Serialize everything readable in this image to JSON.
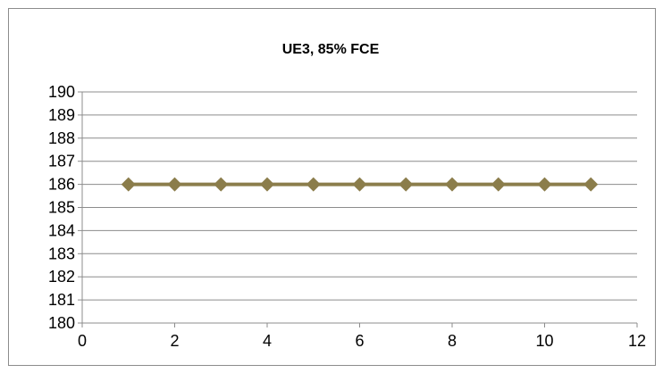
{
  "chart_data": {
    "type": "scatter",
    "title": "UE3, 85% FCE",
    "xlabel": "",
    "ylabel": "",
    "xlim": [
      0,
      12
    ],
    "ylim": [
      180,
      190
    ],
    "x_ticks": [
      0,
      2,
      4,
      6,
      8,
      10,
      12
    ],
    "y_ticks": [
      180,
      181,
      182,
      183,
      184,
      185,
      186,
      187,
      188,
      189,
      190
    ],
    "grid": "horizontal",
    "legend": "none",
    "series": [
      {
        "x": [
          1,
          2,
          3,
          4,
          5,
          6,
          7,
          8,
          9,
          10,
          11
        ],
        "y": [
          186,
          186,
          186,
          186,
          186,
          186,
          186,
          186,
          186,
          186,
          186
        ],
        "color": "#8b7d4b",
        "marker": "diamond",
        "line": true
      }
    ]
  }
}
